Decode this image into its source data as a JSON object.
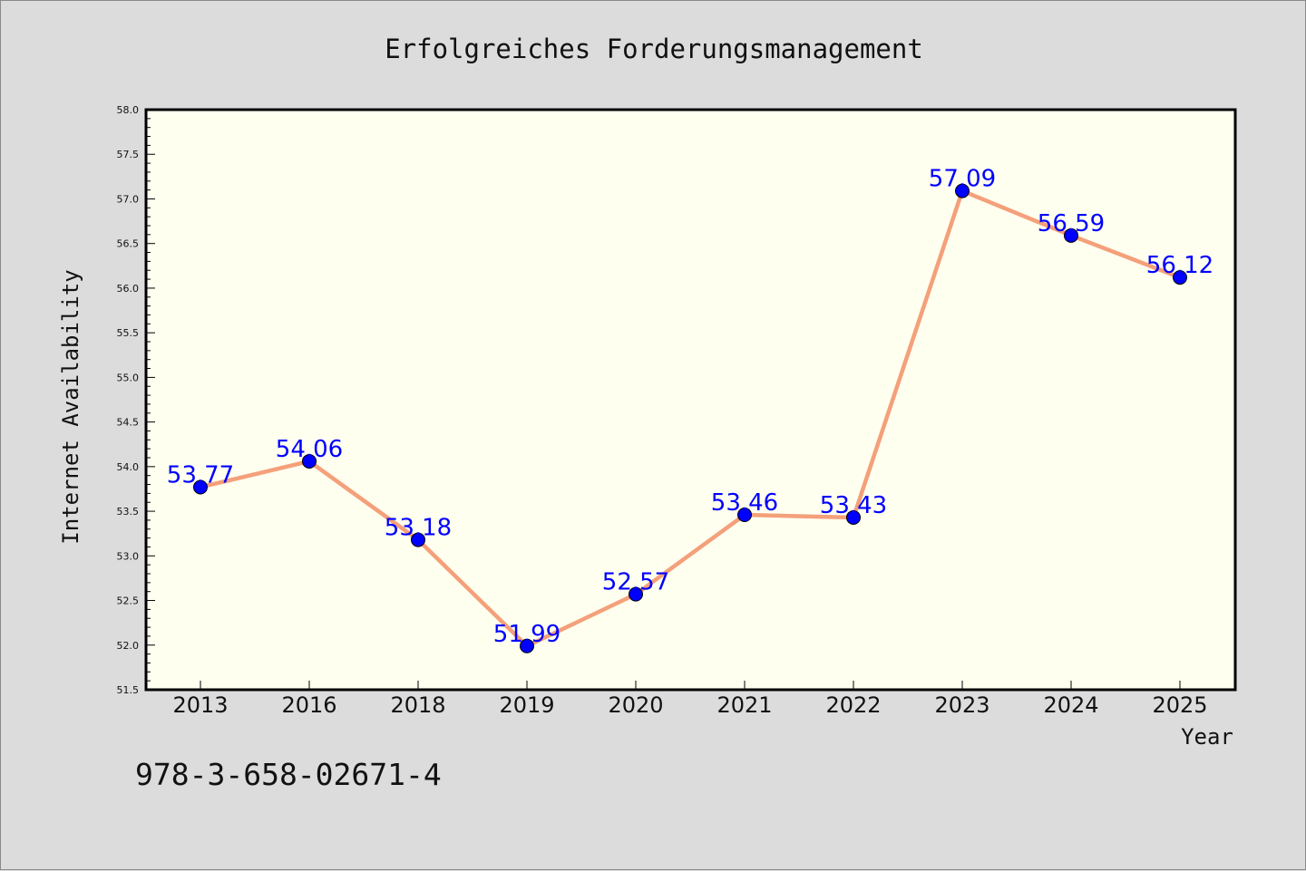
{
  "chart_data": {
    "type": "line",
    "title": "Erfolgreiches Forderungsmanagement",
    "xlabel": "Year",
    "ylabel": "Internet Availability",
    "categories": [
      "2013",
      "2016",
      "2018",
      "2019",
      "2020",
      "2021",
      "2022",
      "2023",
      "2024",
      "2025"
    ],
    "series": [
      {
        "values": [
          53.77,
          54.06,
          53.18,
          51.99,
          52.57,
          53.46,
          53.43,
          57.09,
          56.59,
          56.12
        ],
        "labels": [
          "53.77",
          "54.06",
          "53.18",
          "51.99",
          "52.57",
          "53.46",
          "53.43",
          "57.09",
          "56.59",
          "56.12"
        ],
        "line_color": "#f4a07a",
        "marker_color": "#0000ff"
      }
    ],
    "ylim": [
      51.5,
      58.0
    ],
    "yticks": [
      "51.5",
      "52.0",
      "52.5",
      "53.0",
      "53.5",
      "54.0",
      "54.5",
      "55.0",
      "55.5",
      "56.0",
      "56.5",
      "57.0",
      "57.5",
      "58.0"
    ],
    "grid": false,
    "legend": false
  },
  "footer": {
    "isbn": "978-3-658-02671-4"
  },
  "colors": {
    "background": "#dcdcdc",
    "plot_background": "#fffff0",
    "axis": "#000000",
    "data_label": "#0000ff"
  }
}
